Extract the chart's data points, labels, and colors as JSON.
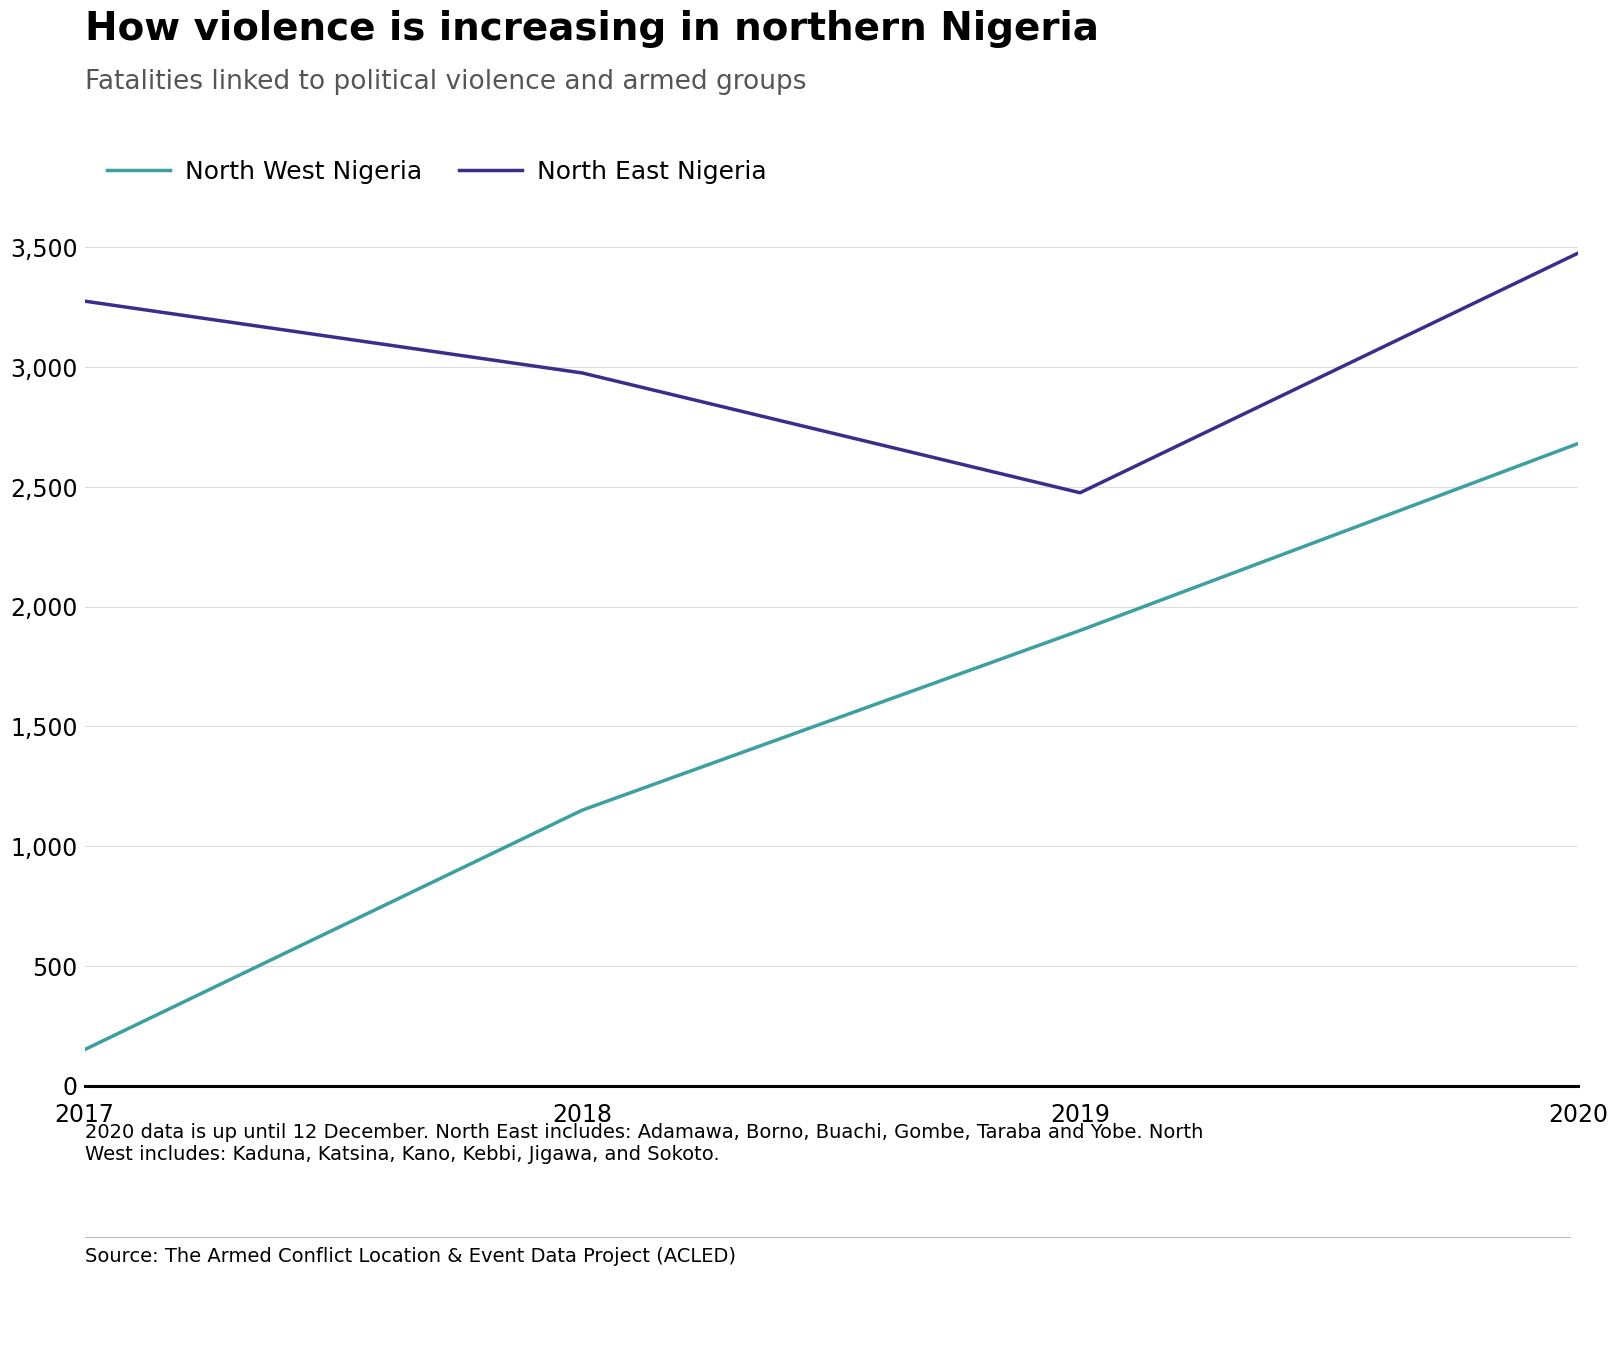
{
  "title": "How violence is increasing in northern Nigeria",
  "subtitle": "Fatalities linked to political violence and armed groups",
  "years": [
    2017,
    2018,
    2019,
    2020
  ],
  "north_west": [
    150,
    1150,
    1900,
    2680
  ],
  "north_east": [
    3275,
    2975,
    2475,
    3475
  ],
  "nw_color": "#3d9fa0",
  "ne_color": "#3d2d8a",
  "nw_label": "North West Nigeria",
  "ne_label": "North East Nigeria",
  "ylim": [
    0,
    3700
  ],
  "yticks": [
    0,
    500,
    1000,
    1500,
    2000,
    2500,
    3000,
    3500
  ],
  "title_fontsize": 28,
  "subtitle_fontsize": 19,
  "tick_fontsize": 17,
  "legend_fontsize": 18,
  "line_width": 2.5,
  "footnote": "2020 data is up until 12 December. North East includes: Adamawa, Borno, Buachi, Gombe, Taraba and Yobe. North\nWest includes: Kaduna, Katsina, Kano, Kebbi, Jigawa, and Sokoto.",
  "source": "Source: The Armed Conflict Location & Event Data Project (ACLED)",
  "bg_color": "#ffffff",
  "footnote_fontsize": 14,
  "source_fontsize": 14
}
